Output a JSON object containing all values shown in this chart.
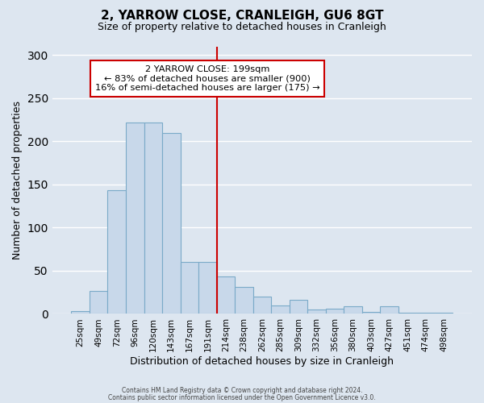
{
  "title": "2, YARROW CLOSE, CRANLEIGH, GU6 8GT",
  "subtitle": "Size of property relative to detached houses in Cranleigh",
  "xlabel": "Distribution of detached houses by size in Cranleigh",
  "ylabel": "Number of detached properties",
  "bar_labels": [
    "25sqm",
    "49sqm",
    "72sqm",
    "96sqm",
    "120sqm",
    "143sqm",
    "167sqm",
    "191sqm",
    "214sqm",
    "238sqm",
    "262sqm",
    "285sqm",
    "309sqm",
    "332sqm",
    "356sqm",
    "380sqm",
    "403sqm",
    "427sqm",
    "451sqm",
    "474sqm",
    "498sqm"
  ],
  "bar_values": [
    3,
    27,
    143,
    222,
    222,
    210,
    60,
    60,
    43,
    31,
    20,
    10,
    16,
    5,
    6,
    9,
    2,
    9,
    1,
    1,
    1
  ],
  "bar_color": "#c8d8ea",
  "bar_edge_color": "#7aaac8",
  "vline_color": "#cc0000",
  "ylim": [
    0,
    310
  ],
  "yticks": [
    0,
    50,
    100,
    150,
    200,
    250,
    300
  ],
  "annotation_title": "2 YARROW CLOSE: 199sqm",
  "annotation_line1": "← 83% of detached houses are smaller (900)",
  "annotation_line2": "16% of semi-detached houses are larger (175) →",
  "annotation_box_color": "#ffffff",
  "annotation_border_color": "#cc0000",
  "footer1": "Contains HM Land Registry data © Crown copyright and database right 2024.",
  "footer2": "Contains public sector information licensed under the Open Government Licence v3.0.",
  "background_color": "#dde6f0",
  "plot_background": "#dde6f0"
}
